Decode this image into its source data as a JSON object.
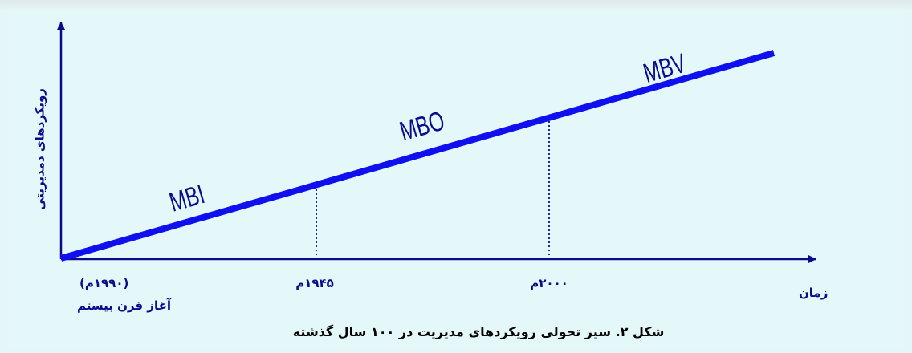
{
  "diagram": {
    "y_axis_label": "رویکردهای دمدیریتی",
    "x_axis_label": "زمان",
    "ticks": [
      {
        "id": "tick_1990",
        "label": "(۱۹۹۰م)"
      },
      {
        "id": "tick_1945",
        "label": "۱۹۴۵م"
      },
      {
        "id": "tick_2000",
        "label": "۲۰۰۰م"
      }
    ],
    "start_label": "آغاز قرن بیستم",
    "stages": [
      "MBI",
      "MBO",
      "MBV"
    ],
    "caption": "شکل ۲. سیر تحولی رویکردهای مدیریت در ۱۰۰ سال گذشته",
    "colors": {
      "axis": "#0a0a8c",
      "trend_line": "#1010ee",
      "text": "#0a0a8c",
      "caption": "#000000",
      "background": "#e4f7f9"
    }
  }
}
